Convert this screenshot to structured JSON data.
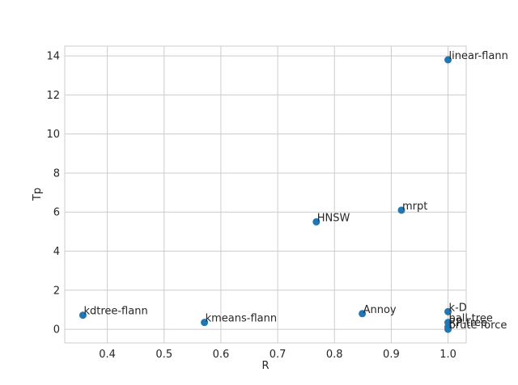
{
  "chart_data": {
    "type": "scatter",
    "title": "",
    "xlabel": "R",
    "ylabel": "Tp",
    "xlim": [
      0.325,
      1.032
    ],
    "ylim": [
      -0.7,
      14.5
    ],
    "xticks": [
      0.4,
      0.5,
      0.6,
      0.7,
      0.8,
      0.9,
      1.0
    ],
    "xtick_labels": [
      "0.4",
      "0.5",
      "0.6",
      "0.7",
      "0.8",
      "0.9",
      "1.0"
    ],
    "yticks": [
      0,
      2,
      4,
      6,
      8,
      10,
      12,
      14
    ],
    "ytick_labels": [
      "0",
      "2",
      "4",
      "6",
      "8",
      "10",
      "12",
      "14"
    ],
    "grid": true,
    "marker_color": "#1f77b4",
    "points": [
      {
        "label": "linear-flann",
        "x": 1.0,
        "y": 13.8
      },
      {
        "label": "mrpt",
        "x": 0.918,
        "y": 6.1
      },
      {
        "label": "HNSW",
        "x": 0.768,
        "y": 5.5
      },
      {
        "label": "kdtree-flann",
        "x": 0.357,
        "y": 0.72
      },
      {
        "label": "kmeans-flann",
        "x": 0.571,
        "y": 0.35
      },
      {
        "label": "Annoy",
        "x": 0.849,
        "y": 0.8
      },
      {
        "label": "k-D",
        "x": 1.0,
        "y": 0.9
      },
      {
        "label": "ball-tree",
        "x": 1.0,
        "y": 0.35
      },
      {
        "label": "RP-tree",
        "x": 1.0,
        "y": 0.12
      },
      {
        "label": "brute force",
        "x": 1.0,
        "y": 0.0
      }
    ]
  }
}
